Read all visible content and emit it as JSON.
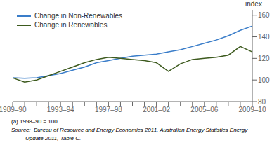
{
  "chart_data": {
    "type": "line",
    "y_label": "index",
    "categories": [
      "1989–90",
      null,
      null,
      null,
      "1993–94",
      null,
      null,
      null,
      "1997–98",
      null,
      null,
      null,
      "2001–02",
      null,
      null,
      null,
      "2005–06",
      null,
      null,
      null,
      "2009–10"
    ],
    "series": [
      {
        "name": "Change in Non-Renewables",
        "color": "#3A7DC9",
        "values": [
          102,
          101.5,
          102,
          104,
          106,
          109,
          112,
          116,
          118,
          120,
          122,
          123,
          124,
          126,
          128,
          131,
          134,
          137,
          141,
          146,
          150
        ]
      },
      {
        "name": "Change in Renewables",
        "color": "#3D5A1E",
        "values": [
          102,
          98,
          100,
          104,
          108,
          112,
          116,
          119,
          121,
          120,
          119,
          118,
          116,
          108,
          115,
          119,
          120,
          121,
          123,
          131,
          126
        ]
      }
    ],
    "ylim": [
      80,
      165
    ],
    "yticks": [
      80,
      100,
      120,
      140,
      160
    ],
    "grid": false,
    "legend": "upper left",
    "annotations": [
      "(a) 1998–90 = 100",
      "Source:  Bureau of Resource and Energy Economics 2011, Australian Energy Statistics Energy",
      "         Update 2011, Table C."
    ]
  }
}
